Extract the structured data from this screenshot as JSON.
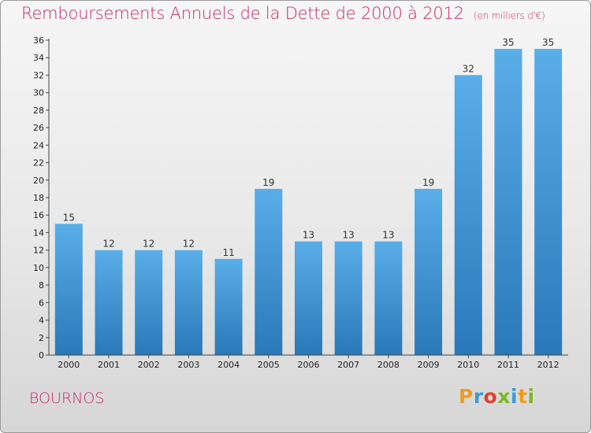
{
  "header": {
    "title": "Remboursements Annuels de la Dette de 2000 à 2012",
    "unit": "(en milliers d'€)"
  },
  "footer": {
    "place": "BOURNOS",
    "logo": [
      "P",
      "r",
      "o",
      "x",
      "i",
      "t",
      "i"
    ],
    "logo_colors": [
      "#f29a1e",
      "#3a9ad9",
      "#e63c2f",
      "#7ab827",
      "#3a9ad9",
      "#f29a1e",
      "#7ab827"
    ]
  },
  "colors": {
    "accent": "#c8286a",
    "bar_top": "#5aaee8",
    "bar_bottom": "#2a78b8"
  },
  "chart_data": {
    "type": "bar",
    "categories": [
      "2000",
      "2001",
      "2002",
      "2003",
      "2004",
      "2005",
      "2006",
      "2007",
      "2008",
      "2009",
      "2010",
      "2011",
      "2012"
    ],
    "values": [
      15,
      12,
      12,
      12,
      11,
      19,
      13,
      13,
      13,
      19,
      32,
      35,
      35
    ],
    "ylim": [
      0,
      36
    ],
    "yticks": [
      0,
      2,
      4,
      6,
      8,
      10,
      12,
      14,
      16,
      18,
      20,
      22,
      24,
      26,
      28,
      30,
      32,
      34,
      36
    ],
    "grid": false,
    "data_labels": true
  }
}
